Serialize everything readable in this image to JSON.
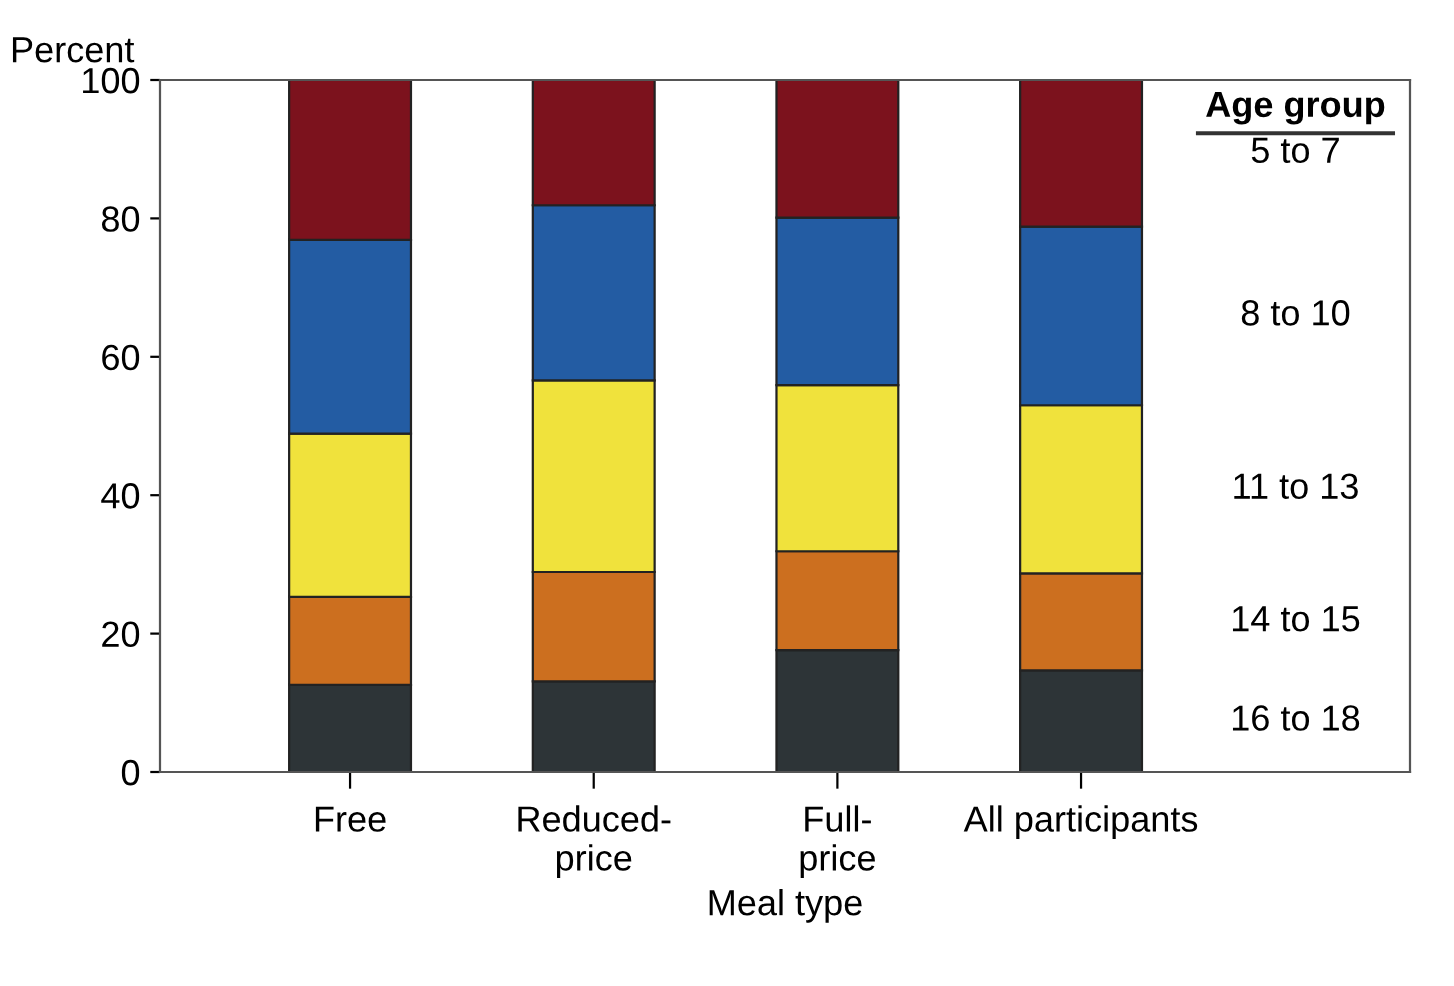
{
  "chart_data": {
    "type": "bar",
    "stacked": true,
    "ylabel": "Percent",
    "xlabel": "Meal type",
    "legend_title": "Age group",
    "categories": [
      "Free",
      "Reduced-\nprice",
      "Full-\nprice",
      "All participants"
    ],
    "series": [
      {
        "name": "16 to 18",
        "color": "#2d3437",
        "values": [
          12.6,
          13.1,
          17.6,
          14.7
        ]
      },
      {
        "name": "14 to 15",
        "color": "#cc6f1f",
        "values": [
          12.7,
          15.8,
          14.3,
          14.0
        ]
      },
      {
        "name": "11 to 13",
        "color": "#f0e23c",
        "values": [
          23.6,
          27.7,
          24.0,
          24.3
        ]
      },
      {
        "name": "8 to 10",
        "color": "#235ca3",
        "values": [
          28.0,
          25.3,
          24.2,
          25.8
        ]
      },
      {
        "name": "5 to 7",
        "color": "#7c121d",
        "values": [
          23.1,
          18.1,
          19.9,
          21.2
        ]
      }
    ],
    "ylim": [
      0,
      100
    ],
    "yticks": [
      0,
      20,
      40,
      60,
      80,
      100
    ],
    "grid": false,
    "legend": "right"
  }
}
